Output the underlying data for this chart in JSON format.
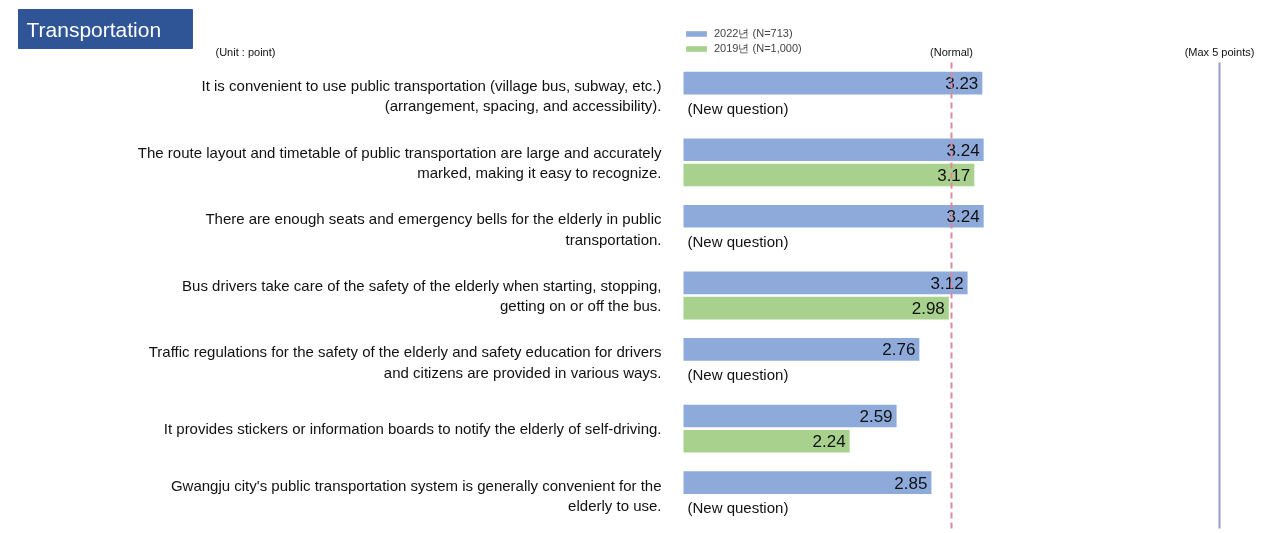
{
  "chart_data": {
    "type": "bar",
    "orientation": "horizontal",
    "title": "Transportation",
    "categories": [
      "It is convenient to use public transportation (village bus, subway, etc.) (arrangement, spacing, and accessibility).",
      "The route layout and timetable of public transportation are large and accurately marked, making it easy to recognize.",
      "There are enough seats and emergency bells for the elderly in public transportation.",
      "Bus drivers take care of the safety of the elderly when starting, stopping, getting on or off the bus.",
      "Traffic regulations for the safety of the elderly and safety education for drivers and citizens are provided in various ways.",
      "It provides stickers or information boards to notify the elderly of self-driving.",
      "Gwangju city's public transportation system is generally convenient for the elderly to use."
    ],
    "series": [
      {
        "name": "2022년 (N=713)",
        "color": "#8eaadb",
        "values": [
          3.23,
          3.24,
          3.24,
          3.12,
          2.76,
          2.59,
          2.85
        ]
      },
      {
        "name": "2019년 (N=1,000)",
        "color": "#a9d18e",
        "values": [
          null,
          3.17,
          null,
          2.98,
          null,
          2.24,
          null
        ]
      }
    ],
    "xlim": [
      1,
      5
    ],
    "tick_labels": "y",
    "data_labels": true,
    "legend": "top left",
    "grid": false,
    "ref_lines": [
      {
        "axis": "x",
        "value": 3,
        "label": "(Normal)",
        "color": "#d98a9b",
        "line_style": "dashed"
      },
      {
        "axis": "x",
        "value": 5,
        "label": "(Max 5 points)",
        "color": "#9a9acd",
        "line_style": "solid"
      }
    ],
    "annotations": [
      "(Unit : point)",
      {
        "text": "(New question)",
        "y": "It is convenient to use public transportation (village bus, subway, etc.) (arrangement, spacing, and accessibility)."
      },
      {
        "text": "(New question)",
        "y": "There are enough seats and emergency bells for the elderly in public transportation."
      },
      {
        "text": "(New question)",
        "y": "Traffic regulations for the safety of the elderly and safety education for drivers and citizens are provided in various ways."
      },
      {
        "text": "(New question)",
        "y": "Gwangju city's public transportation system is generally convenient for the elderly to use."
      }
    ]
  }
}
